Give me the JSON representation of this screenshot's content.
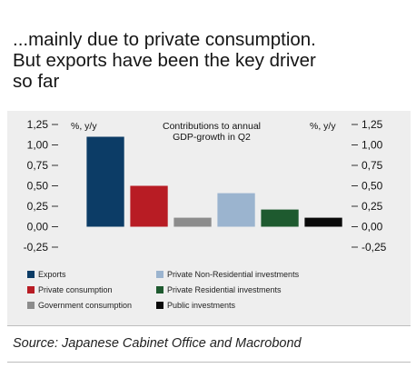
{
  "header": {
    "title_lines": [
      "...mainly due to private consumption.",
      "But exports have been the key driver",
      "so far"
    ]
  },
  "chart_data": {
    "type": "bar",
    "title_lines": [
      "Contributions to annual",
      "GDP-growth in Q2"
    ],
    "y_unit_left": "%, y/y",
    "y_unit_right": "%, y/y",
    "ylim": [
      -0.25,
      1.25
    ],
    "yticks": [
      1.25,
      1.0,
      0.75,
      0.5,
      0.25,
      0.0,
      -0.25
    ],
    "ytick_labels": [
      "1,25",
      "1,00",
      "0,75",
      "0,50",
      "0,25",
      "0,00",
      "-0,25"
    ],
    "xlabel": "",
    "grid": false,
    "categories": [
      "Exports",
      "Private consumption",
      "Government consumption",
      "Private Non-Residential investments",
      "Private Residential investments",
      "Public investments"
    ],
    "values": [
      1.1,
      0.5,
      0.11,
      0.41,
      0.21,
      0.11
    ],
    "colors": [
      "#0c3c66",
      "#b81c24",
      "#8c8c8c",
      "#9bb4cf",
      "#1e5a2f",
      "#0a0a0a"
    ],
    "legend_placement": "bottom"
  },
  "legend": {
    "items": [
      {
        "label": "Exports",
        "color": "#0c3c66"
      },
      {
        "label": "Private consumption",
        "color": "#b81c24"
      },
      {
        "label": "Government consumption",
        "color": "#8c8c8c"
      },
      {
        "label": "Private Non-Residential investments",
        "color": "#9bb4cf"
      },
      {
        "label": "Private Residential investments",
        "color": "#1e5a2f"
      },
      {
        "label": "Public investments",
        "color": "#0a0a0a"
      }
    ]
  },
  "footer": {
    "source": "Source: Japanese Cabinet Office and Macrobond"
  }
}
